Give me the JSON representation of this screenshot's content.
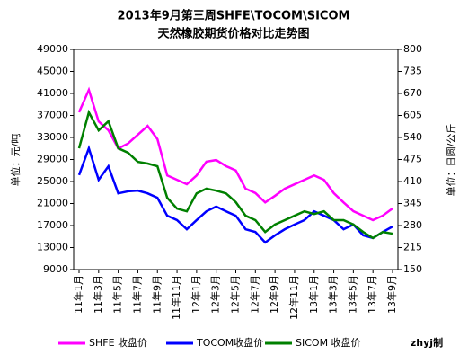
{
  "chart_data": {
    "type": "line",
    "title": [
      "2013年9月第三周SHFE\\TOCOM\\SICOM",
      "天然橡胶期货价格对比走势图"
    ],
    "ylabel": "单位：元/吨",
    "y2label": "单位：日圆/公斤",
    "annotation": "zhyj制",
    "categories": [
      "11年1月",
      null,
      "11年3月",
      null,
      "11年5月",
      null,
      "11年7月",
      null,
      "11年9月",
      null,
      "11年11月",
      null,
      "12年1月",
      null,
      "12年3月",
      null,
      "12年5月",
      null,
      "12年7月",
      null,
      "12年9月",
      null,
      "12年11月",
      null,
      "13年1月",
      null,
      "13年3月",
      null,
      "13年5月",
      null,
      "13年7月",
      null,
      "13年9月"
    ],
    "series": [
      {
        "name": "SHFE 收盘价",
        "color": "#ff00ff",
        "axis": "y",
        "values": [
          37600,
          41650,
          35900,
          34300,
          31000,
          31900,
          33500,
          35100,
          32700,
          26100,
          25300,
          24500,
          26100,
          28600,
          28900,
          27800,
          27000,
          23700,
          22900,
          21200,
          22400,
          23700,
          24500,
          25300,
          26100,
          25300,
          22900,
          21200,
          19600,
          18800,
          17980,
          18800,
          20100
        ]
      },
      {
        "name": "TOCOM收盘价",
        "color": "#0000ff",
        "axis": "y2",
        "values": [
          429,
          508,
          415,
          455,
          375,
          381,
          383,
          375,
          362,
          309,
          296,
          269,
          296,
          322,
          336,
          322,
          309,
          269,
          261,
          230,
          251,
          269,
          283,
          296,
          322,
          309,
          296,
          269,
          283,
          251,
          243,
          261,
          277
        ]
      },
      {
        "name": "SICOM 收盘价",
        "color": "#008000",
        "axis": "y2",
        "values": [
          508,
          614,
          561,
          588,
          508,
          495,
          468,
          463,
          455,
          362,
          330,
          322,
          375,
          389,
          383,
          375,
          349,
          309,
          296,
          261,
          283,
          296,
          309,
          322,
          314,
          322,
          296,
          296,
          283,
          261,
          243,
          261,
          256
        ]
      }
    ],
    "ylim": [
      9000,
      49000
    ],
    "yticks": [
      9000,
      13000,
      17000,
      21000,
      25000,
      29000,
      33000,
      37000,
      41000,
      45000,
      49000
    ],
    "y2lim": [
      150,
      800
    ],
    "y2ticks": [
      150,
      215,
      280,
      345,
      410,
      475,
      540,
      605,
      670,
      735,
      800
    ],
    "legend": "bottom"
  }
}
